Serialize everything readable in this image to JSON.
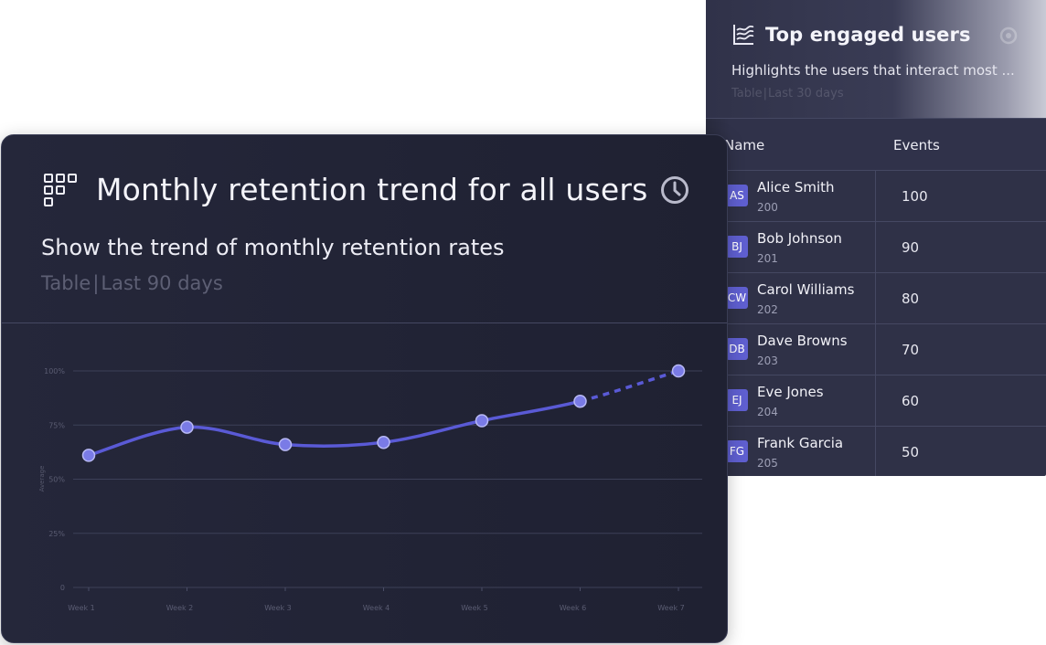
{
  "retention": {
    "title": "Monthly retention trend for all users",
    "description": "Show the trend of monthly retention rates",
    "meta_type": "Table",
    "meta_separator": "|",
    "meta_range": "Last 90 days"
  },
  "top_users": {
    "title": "Top engaged users",
    "description": "Highlights the users that interact most ...",
    "meta_type": "Table",
    "meta_separator": "|",
    "meta_range": "Last 30 days",
    "columns": {
      "name": "Name",
      "events": "Events"
    },
    "rows": [
      {
        "initials": "AS",
        "name": "Alice Smith",
        "id": "200",
        "events": "100"
      },
      {
        "initials": "BJ",
        "name": "Bob Johnson",
        "id": "201",
        "events": "90"
      },
      {
        "initials": "CW",
        "name": "Carol Williams",
        "id": "202",
        "events": "80"
      },
      {
        "initials": "DB",
        "name": "Dave Browns",
        "id": "203",
        "events": "70"
      },
      {
        "initials": "EJ",
        "name": "Eve Jones",
        "id": "204",
        "events": "60"
      },
      {
        "initials": "FG",
        "name": "Frank Garcia",
        "id": "205",
        "events": "50"
      }
    ]
  },
  "colors": {
    "accent": "#5a5ad6",
    "point_fill": "#7a7be6",
    "card_bg": "#222436",
    "avatar_bg": "#5f5fd0"
  },
  "chart_data": {
    "type": "line",
    "categories": [
      "Week 1",
      "Week 2",
      "Week 3",
      "Week 4",
      "Week 5",
      "Week 6",
      "Week 7"
    ],
    "values": [
      61,
      74,
      66,
      67,
      77,
      86,
      100
    ],
    "dashed_from_index": 5,
    "ylabel": "Average",
    "ylim": [
      0,
      100
    ],
    "yticks": [
      0,
      25,
      50,
      75,
      100
    ],
    "ytick_labels": [
      "0",
      "25%",
      "50%",
      "75%",
      "100%"
    ],
    "grid": true
  }
}
